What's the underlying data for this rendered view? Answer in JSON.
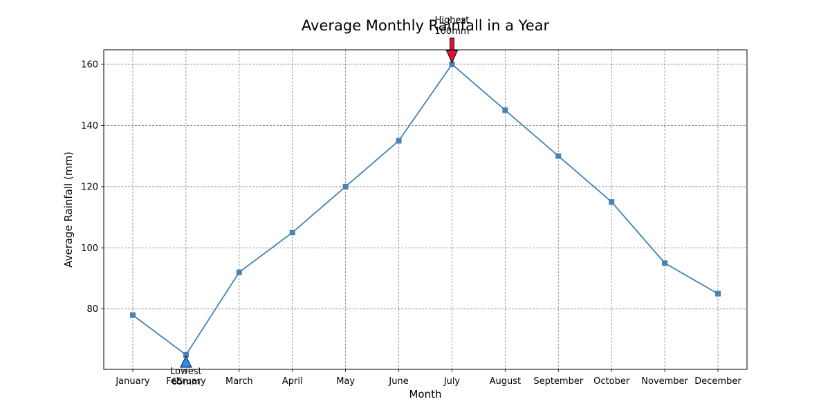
{
  "chart_data": {
    "type": "line",
    "title": "Average Monthly Rainfall in a Year",
    "xlabel": "Month",
    "ylabel": "Average Rainfall (mm)",
    "categories": [
      "January",
      "February",
      "March",
      "April",
      "May",
      "June",
      "July",
      "August",
      "September",
      "October",
      "November",
      "December"
    ],
    "values": [
      78,
      65,
      92,
      105,
      120,
      135,
      160,
      145,
      130,
      115,
      95,
      85
    ],
    "ylim": [
      60.25,
      164.75
    ],
    "yticks": [
      80,
      100,
      120,
      140,
      160
    ],
    "grid": true,
    "line_color": "#4682b4",
    "marker": "square",
    "annotations": [
      {
        "category": "July",
        "value": 160,
        "lines": [
          "Highest",
          "160mm"
        ],
        "arrow_color": "#dc143c",
        "direction": "down"
      },
      {
        "category": "February",
        "value": 65,
        "lines": [
          "Lowest",
          "65mm"
        ],
        "arrow_color": "#1e90ff",
        "direction": "up"
      }
    ]
  }
}
